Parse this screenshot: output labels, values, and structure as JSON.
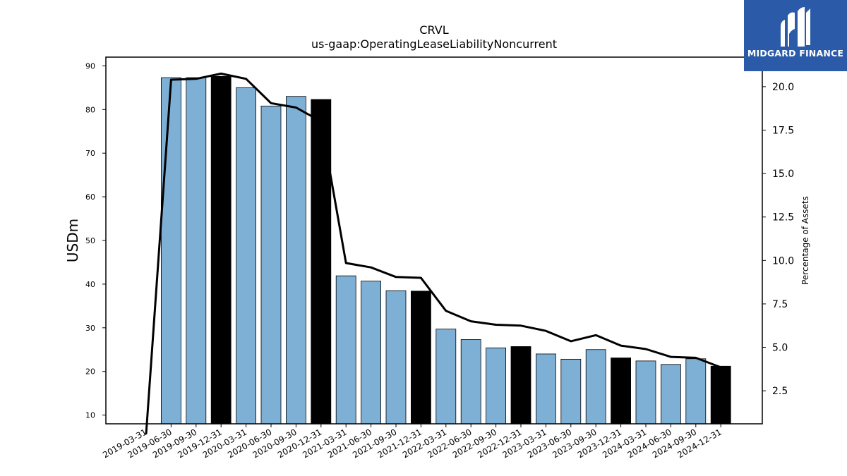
{
  "chart_data": {
    "type": "bar",
    "title": "CRVL",
    "subtitle": "us-gaap:OperatingLeaseLiabilityNoncurrent",
    "ylabel": "USDm",
    "y2label": "Percentage of Assets",
    "ylim": [
      8,
      92
    ],
    "y2lim": [
      0.6,
      21.7
    ],
    "yticks": [
      "10",
      "20",
      "30",
      "40",
      "50",
      "60",
      "70",
      "80",
      "90"
    ],
    "y2ticks": [
      "2.5",
      "5.0",
      "7.5",
      "10.0",
      "12.5",
      "15.0",
      "17.5",
      "20.0"
    ],
    "categories": [
      "2019-03-31",
      "2019-06-30",
      "2019-09-30",
      "2019-12-31",
      "2020-03-31",
      "2020-06-30",
      "2020-09-30",
      "2020-12-31",
      "2021-03-31",
      "2021-06-30",
      "2021-09-30",
      "2021-12-31",
      "2022-03-31",
      "2022-06-30",
      "2022-09-30",
      "2022-12-31",
      "2023-03-31",
      "2023-06-30",
      "2023-09-30",
      "2023-12-31",
      "2024-03-31",
      "2024-06-30",
      "2024-09-30",
      "2024-12-31"
    ],
    "values": [
      null,
      87.3,
      87.3,
      87.6,
      85.0,
      80.8,
      83.0,
      82.3,
      41.9,
      40.7,
      38.5,
      38.4,
      29.7,
      27.3,
      25.4,
      25.7,
      24.0,
      22.8,
      25.0,
      23.1,
      22.4,
      21.6,
      22.9,
      21.2
    ],
    "highlight_color": "#000000",
    "bar_color": "#7eb0d5",
    "line_series": {
      "name": "Percentage of Assets",
      "axis": "right",
      "values": [
        0.0,
        20.4,
        20.45,
        20.75,
        20.45,
        19.05,
        18.8,
        18.0,
        9.85,
        9.6,
        9.05,
        9.0,
        7.1,
        6.5,
        6.3,
        6.25,
        5.95,
        5.35,
        5.7,
        5.1,
        4.9,
        4.45,
        4.4,
        3.85
      ]
    },
    "grid": false
  },
  "logo": {
    "text": "MIDGARD FINANCE",
    "bg_color": "#2a5aa8"
  }
}
